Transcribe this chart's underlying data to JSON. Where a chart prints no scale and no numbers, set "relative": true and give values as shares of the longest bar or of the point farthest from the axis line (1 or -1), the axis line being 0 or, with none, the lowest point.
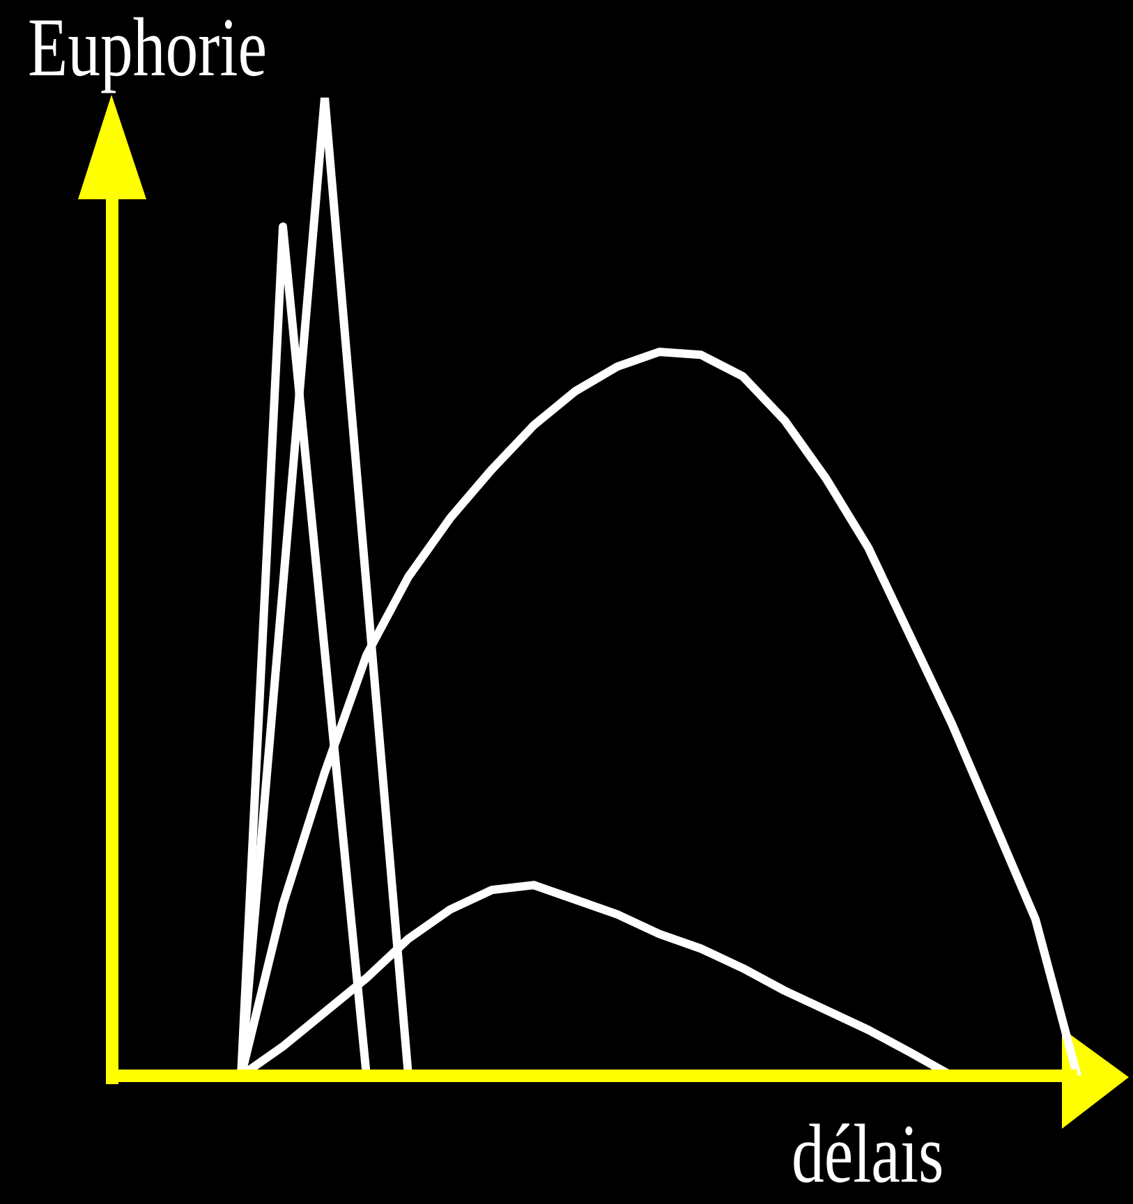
{
  "chart_data": {
    "type": "line",
    "relative": true,
    "xlabel": "délais",
    "ylabel": "Euphorie",
    "marker": "none",
    "categories": [
      null,
      null,
      null,
      null,
      null,
      null,
      null,
      null,
      null,
      null,
      null,
      null,
      null,
      null,
      null,
      null,
      null,
      null,
      null,
      null,
      null,
      null,
      null,
      null
    ],
    "series": [
      {
        "color": "#ffffff",
        "values": [
          null,
          null,
          null,
          0,
          0.868,
          0.434,
          0,
          null,
          null,
          null,
          null,
          null,
          null,
          null,
          null,
          null,
          null,
          null,
          null,
          null,
          null,
          null,
          null,
          null
        ]
      },
      {
        "color": "#ffffff",
        "values": [
          null,
          null,
          null,
          0,
          0.5,
          1,
          0.5,
          0,
          null,
          null,
          null,
          null,
          null,
          null,
          null,
          null,
          null,
          null,
          null,
          null,
          null,
          null,
          null,
          null
        ]
      },
      {
        "color": "#ffffff",
        "values": [
          null,
          null,
          null,
          0,
          0.175,
          0.31,
          0.43,
          0.51,
          0.57,
          0.62,
          0.665,
          0.7,
          0.725,
          0.74,
          0.737,
          0.715,
          0.67,
          0.61,
          0.54,
          0.45,
          0.36,
          0.26,
          0.16,
          0
        ]
      },
      {
        "color": "#ffffff",
        "values": [
          null,
          null,
          null,
          0,
          0.03,
          0.065,
          0.1,
          0.14,
          0.17,
          0.19,
          0.195,
          0.18,
          0.165,
          0.145,
          0.13,
          0.11,
          0.087,
          0.067,
          0.047,
          0.024,
          0,
          null,
          null,
          null
        ]
      }
    ]
  }
}
